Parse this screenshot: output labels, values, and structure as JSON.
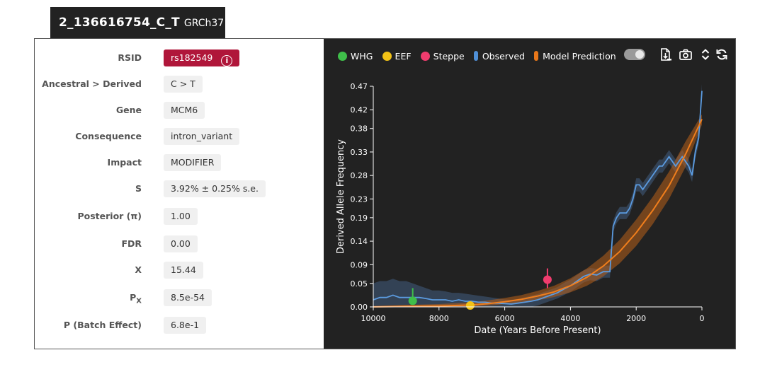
{
  "tab": {
    "variant_id": "2_136616754_C_T",
    "assembly": "GRCh37"
  },
  "info_rows": [
    {
      "label": "RSID",
      "value": "rs182549"
    },
    {
      "label": "Ancestral > Derived",
      "value": "C > T"
    },
    {
      "label": "Gene",
      "value": "MCM6"
    },
    {
      "label": "Consequence",
      "value": "intron_variant"
    },
    {
      "label": "Impact",
      "value": "MODIFIER"
    },
    {
      "label": "S",
      "value": "3.92% ± 0.25% s.e."
    },
    {
      "label": "Posterior (π)",
      "value": "1.00"
    },
    {
      "label": "FDR",
      "value": "0.00"
    },
    {
      "label": "X",
      "value": "15.44"
    },
    {
      "label": "P",
      "label_sub": "X",
      "value": "8.5e-54"
    },
    {
      "label": "P (Batch Effect)",
      "value": "6.8e-1"
    }
  ],
  "legend": [
    {
      "name": "WHG",
      "color": "#3fbf4a",
      "kind": "dot"
    },
    {
      "name": "EEF",
      "color": "#f2c216",
      "kind": "dot"
    },
    {
      "name": "Steppe",
      "color": "#f03c6e",
      "kind": "dot"
    },
    {
      "name": "Observed",
      "color": "#4f8fd6",
      "kind": "bar"
    },
    {
      "name": "Model Prediction",
      "color": "#e8771a",
      "kind": "bar"
    }
  ],
  "toolbar": {
    "download_icon": "download-data-icon",
    "camera_icon": "camera-icon",
    "expand_icon": "expand-vertical-icon",
    "refresh_icon": "refresh-icon"
  },
  "chart_data": {
    "type": "line",
    "xlabel": "Date (Years Before Present)",
    "ylabel": "Derived Allele Frequency",
    "xlim": [
      10000,
      0
    ],
    "ylim": [
      0,
      0.47
    ],
    "x_ticks": [
      10000,
      8000,
      6000,
      4000,
      2000,
      0
    ],
    "x_tick_labels": [
      "10000",
      "8000",
      "6000",
      "4000",
      "2000",
      "0"
    ],
    "y_ticks": [
      0.0,
      0.05,
      0.09,
      0.14,
      0.19,
      0.23,
      0.28,
      0.33,
      0.38,
      0.42,
      0.47
    ],
    "y_tick_labels": [
      "0.00",
      "0.05",
      "0.09",
      "0.14",
      "0.19",
      "0.23",
      "0.28",
      "0.33",
      "0.38",
      "0.42",
      "0.47"
    ],
    "observed": {
      "x": [
        10000,
        9800,
        9600,
        9400,
        9200,
        9000,
        8800,
        8600,
        8400,
        8200,
        8000,
        7800,
        7600,
        7400,
        7200,
        7000,
        6800,
        6600,
        6400,
        6200,
        6000,
        5800,
        5600,
        5400,
        5200,
        5000,
        4800,
        4600,
        4400,
        4200,
        4000,
        3800,
        3600,
        3400,
        3200,
        3000,
        2800,
        2700,
        2600,
        2500,
        2400,
        2300,
        2200,
        2100,
        2000,
        1900,
        1800,
        1700,
        1600,
        1500,
        1400,
        1300,
        1200,
        1100,
        1000,
        900,
        800,
        700,
        600,
        500,
        400,
        300,
        200,
        100,
        0
      ],
      "y": [
        0.015,
        0.02,
        0.02,
        0.025,
        0.02,
        0.02,
        0.02,
        0.02,
        0.018,
        0.015,
        0.015,
        0.015,
        0.012,
        0.015,
        0.012,
        0.012,
        0.01,
        0.01,
        0.008,
        0.008,
        0.007,
        0.006,
        0.008,
        0.01,
        0.012,
        0.015,
        0.02,
        0.025,
        0.03,
        0.038,
        0.045,
        0.055,
        0.065,
        0.07,
        0.068,
        0.075,
        0.075,
        0.172,
        0.19,
        0.2,
        0.2,
        0.2,
        0.21,
        0.23,
        0.26,
        0.26,
        0.25,
        0.26,
        0.27,
        0.28,
        0.29,
        0.3,
        0.3,
        0.31,
        0.32,
        0.31,
        0.3,
        0.31,
        0.32,
        0.31,
        0.3,
        0.28,
        0.33,
        0.36,
        0.46
      ],
      "lower": [
        0.0,
        0.0,
        0.0,
        0.0,
        0.0,
        0.0,
        0.0,
        0.0,
        0.0,
        0.0,
        0.0,
        0.0,
        0.0,
        0.0,
        0.0,
        0.0,
        0.0,
        0.0,
        0.0,
        0.0,
        0.0,
        0.0,
        0.0,
        0.0,
        0.0,
        0.003,
        0.008,
        0.013,
        0.018,
        0.025,
        0.032,
        0.042,
        0.052,
        0.057,
        0.055,
        0.062,
        0.062,
        0.16,
        0.178,
        0.187,
        0.187,
        0.187,
        0.197,
        0.217,
        0.246,
        0.246,
        0.236,
        0.246,
        0.256,
        0.266,
        0.276,
        0.286,
        0.286,
        0.296,
        0.306,
        0.296,
        0.286,
        0.296,
        0.306,
        0.296,
        0.286,
        0.266,
        0.316,
        0.346,
        0.445
      ],
      "upper": [
        0.05,
        0.055,
        0.055,
        0.06,
        0.055,
        0.055,
        0.05,
        0.045,
        0.04,
        0.035,
        0.035,
        0.033,
        0.03,
        0.03,
        0.028,
        0.026,
        0.024,
        0.022,
        0.02,
        0.018,
        0.016,
        0.015,
        0.017,
        0.02,
        0.024,
        0.027,
        0.032,
        0.037,
        0.042,
        0.051,
        0.058,
        0.068,
        0.078,
        0.083,
        0.081,
        0.088,
        0.088,
        0.184,
        0.202,
        0.213,
        0.213,
        0.213,
        0.223,
        0.243,
        0.274,
        0.274,
        0.264,
        0.274,
        0.284,
        0.294,
        0.304,
        0.314,
        0.314,
        0.324,
        0.334,
        0.324,
        0.314,
        0.324,
        0.334,
        0.324,
        0.314,
        0.294,
        0.344,
        0.374,
        0.475
      ]
    },
    "model": {
      "x": [
        10000,
        9000,
        8000,
        7000,
        6500,
        6000,
        5500,
        5000,
        4500,
        4000,
        3500,
        3000,
        2500,
        2000,
        1500,
        1000,
        500,
        0
      ],
      "y": [
        0.0,
        0.001,
        0.002,
        0.004,
        0.007,
        0.011,
        0.016,
        0.023,
        0.032,
        0.045,
        0.063,
        0.087,
        0.118,
        0.158,
        0.205,
        0.258,
        0.325,
        0.4
      ],
      "lower": [
        0.0,
        0.0,
        0.0,
        0.001,
        0.003,
        0.006,
        0.009,
        0.014,
        0.021,
        0.031,
        0.045,
        0.065,
        0.093,
        0.13,
        0.176,
        0.23,
        0.298,
        0.388
      ],
      "upper": [
        0.002,
        0.004,
        0.006,
        0.01,
        0.014,
        0.019,
        0.025,
        0.034,
        0.045,
        0.061,
        0.082,
        0.109,
        0.143,
        0.186,
        0.234,
        0.288,
        0.352,
        0.41
      ]
    },
    "points": [
      {
        "name": "WHG",
        "x": 8800,
        "y": 0.013,
        "y_low": 0.005,
        "y_high": 0.04,
        "color": "#3fbf4a"
      },
      {
        "name": "EEF",
        "x": 7050,
        "y": 0.003,
        "y_low": 0.0,
        "y_high": 0.006,
        "color": "#f2c216"
      },
      {
        "name": "Steppe",
        "x": 4700,
        "y": 0.058,
        "y_low": 0.04,
        "y_high": 0.082,
        "color": "#f03c6e"
      }
    ],
    "grid": false,
    "legend_position": "top"
  }
}
